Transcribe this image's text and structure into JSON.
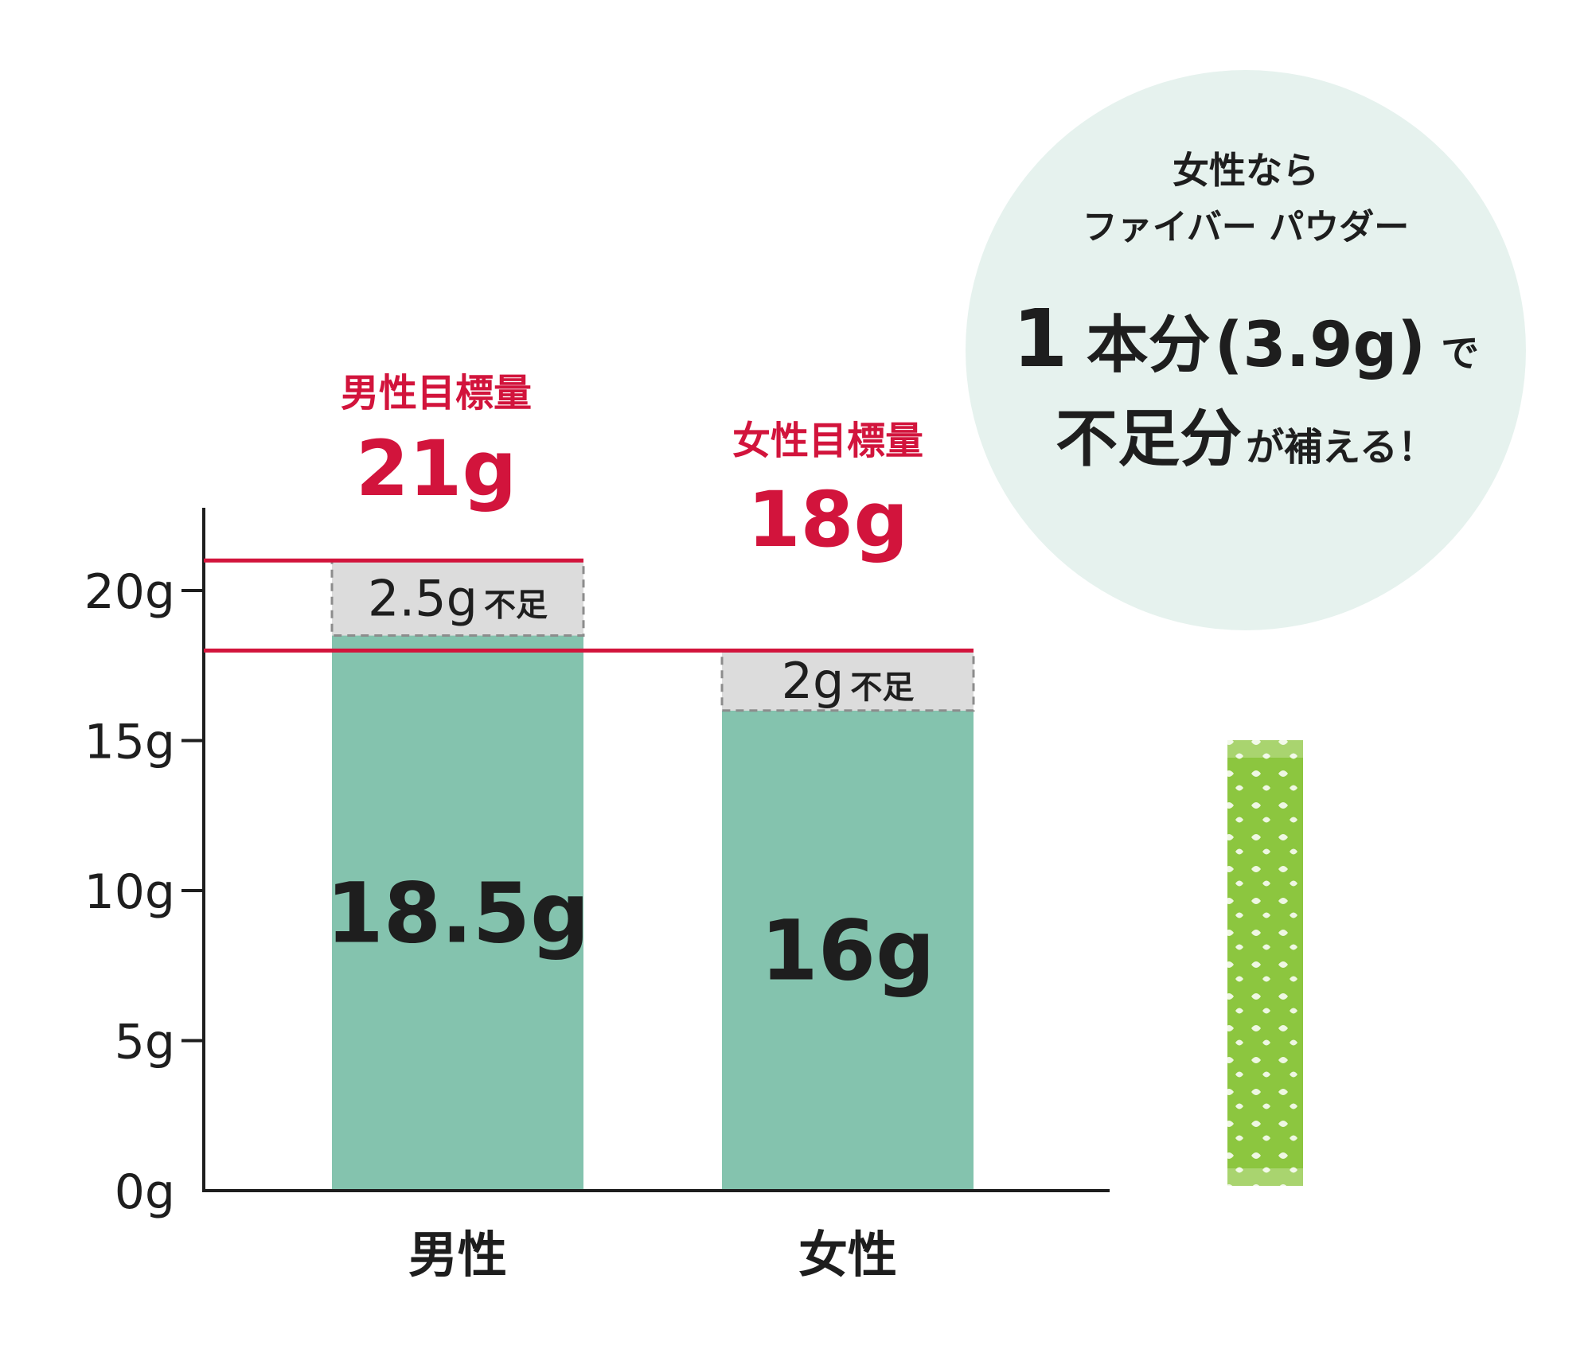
{
  "chart_data": {
    "type": "bar",
    "categories": [
      "男性",
      "女性"
    ],
    "values": [
      18.5,
      16
    ],
    "value_labels": [
      "18.5g",
      "16g"
    ],
    "y_ticks": [
      0,
      5,
      10,
      15,
      20
    ],
    "y_tick_labels": [
      "0g",
      "5g",
      "10g",
      "15g",
      "20g"
    ],
    "ylim": [
      0,
      23
    ],
    "targets": [
      {
        "title": "男性目標量",
        "value": 21,
        "label": "21g"
      },
      {
        "title": "女性目標量",
        "value": 18,
        "label": "18g"
      }
    ],
    "shortfalls": [
      {
        "from": 18.5,
        "to": 21,
        "amount_label": "2.5g",
        "word": "不足"
      },
      {
        "from": 16,
        "to": 18,
        "amount_label": "2g",
        "word": "不足"
      }
    ],
    "colors": {
      "bar": "#84c3ae",
      "shortfall": "#dcdcdc",
      "target_line": "#d2143c",
      "bubble": "#e6f2ee",
      "text": "#1e1e1e"
    },
    "grid": false
  },
  "bubble": {
    "line1": "女性なら",
    "line2": "ファイバー パウダー",
    "amount_one": "1",
    "amount_unit": "本分",
    "amount_paren": "(3.9g)",
    "amount_de": "で",
    "shortage": "不足分",
    "closing": "が補える！"
  },
  "product": {
    "icon": "fiber-powder-stick-icon",
    "color": "#8cc63f"
  }
}
